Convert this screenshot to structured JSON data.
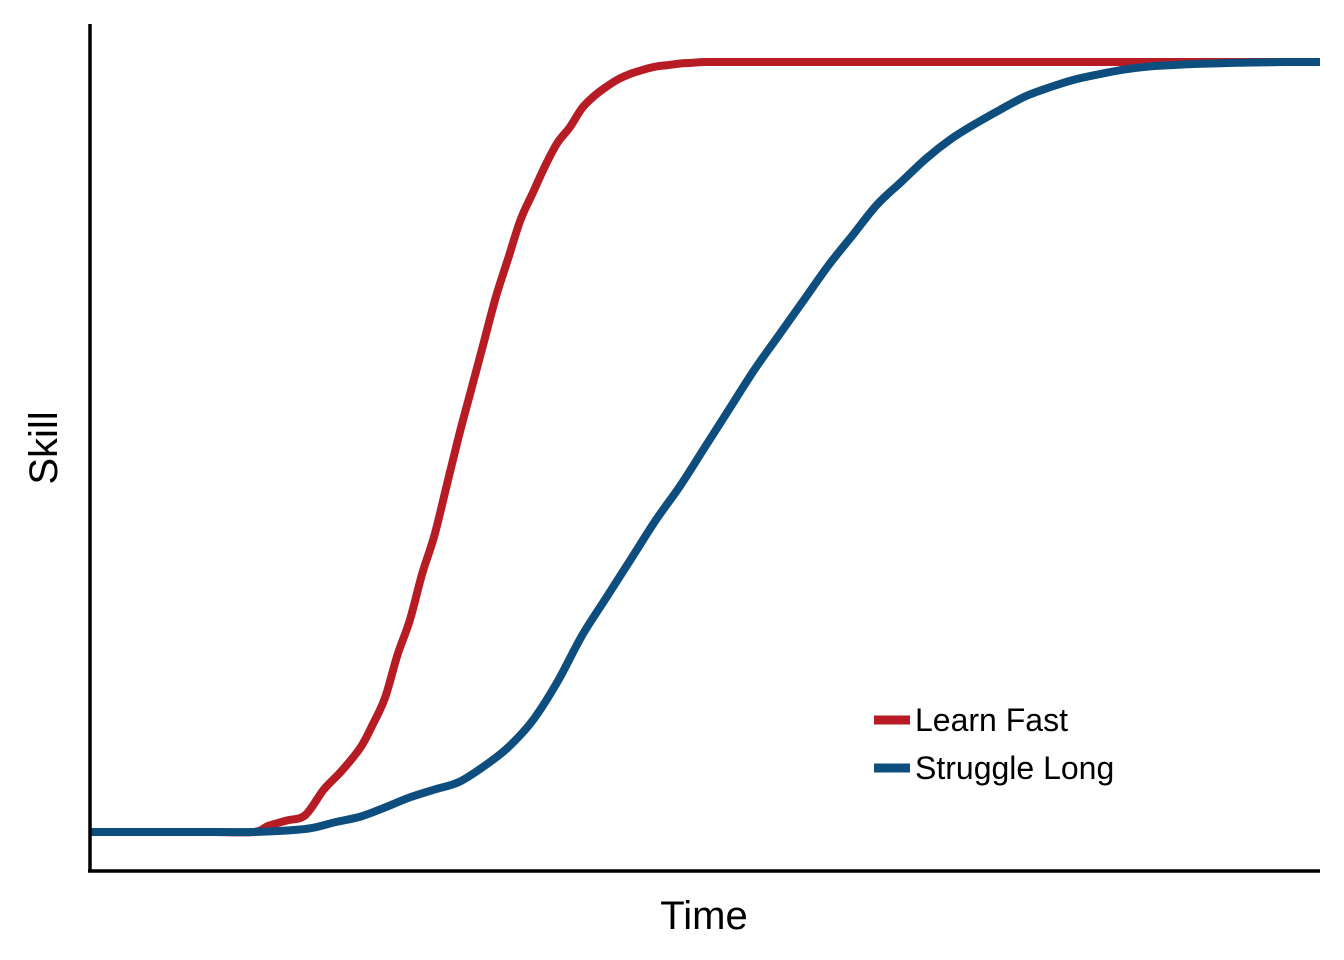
{
  "chart_data": {
    "type": "line",
    "title": "",
    "xlabel": "Time",
    "ylabel": "Skill",
    "xlim": [
      0,
      100
    ],
    "ylim": [
      0,
      100
    ],
    "show_tick_labels": false,
    "grid": false,
    "legend_position": "bottom-right",
    "series": [
      {
        "name": "Learn Fast",
        "color": "#b71c24",
        "x": [
          0,
          5,
          10,
          13.3,
          14.5,
          16,
          17.5,
          19,
          20.5,
          22,
          23,
          24,
          25,
          26,
          27,
          28,
          29,
          30,
          31,
          32,
          33,
          34,
          35,
          36,
          37,
          38,
          39,
          40,
          41,
          42,
          43,
          44,
          45,
          46,
          47,
          48,
          49,
          50,
          52,
          54,
          56,
          60,
          70,
          80,
          90,
          100
        ],
        "y": [
          0,
          0,
          0,
          0,
          0.8,
          1.5,
          2.2,
          5.5,
          8,
          11,
          14,
          17.5,
          23,
          27.5,
          33.5,
          38.5,
          45,
          51.5,
          57.5,
          63.5,
          69.5,
          74.5,
          79.5,
          83,
          86.5,
          89.5,
          91.5,
          94,
          95.6,
          96.8,
          97.8,
          98.5,
          99,
          99.4,
          99.6,
          99.8,
          99.9,
          100,
          100,
          100,
          100,
          100,
          100,
          100,
          100,
          100
        ]
      },
      {
        "name": "Struggle Long",
        "color": "#0e4e7f",
        "x": [
          0,
          5,
          10,
          13.3,
          16,
          18,
          20,
          22,
          24,
          26,
          28,
          30,
          32,
          34,
          36,
          38,
          40,
          42,
          44,
          46,
          48,
          50,
          52,
          54,
          56,
          58,
          60,
          62,
          64,
          66,
          68,
          70,
          72,
          74,
          76,
          78,
          80,
          82,
          84,
          86,
          88,
          90,
          92,
          94,
          96,
          97,
          100
        ],
        "y": [
          0,
          0,
          0,
          0,
          0.2,
          0.5,
          1.3,
          2,
          3.2,
          4.5,
          5.5,
          6.5,
          8.5,
          11,
          14.5,
          19.5,
          25.5,
          30.5,
          35.5,
          40.5,
          45,
          50,
          55,
          60,
          64.5,
          69,
          73.5,
          77.5,
          81.5,
          84.5,
          87.5,
          90,
          92,
          93.8,
          95.5,
          96.7,
          97.7,
          98.4,
          99,
          99.4,
          99.6,
          99.75,
          99.85,
          99.92,
          99.96,
          100,
          100
        ]
      }
    ]
  }
}
